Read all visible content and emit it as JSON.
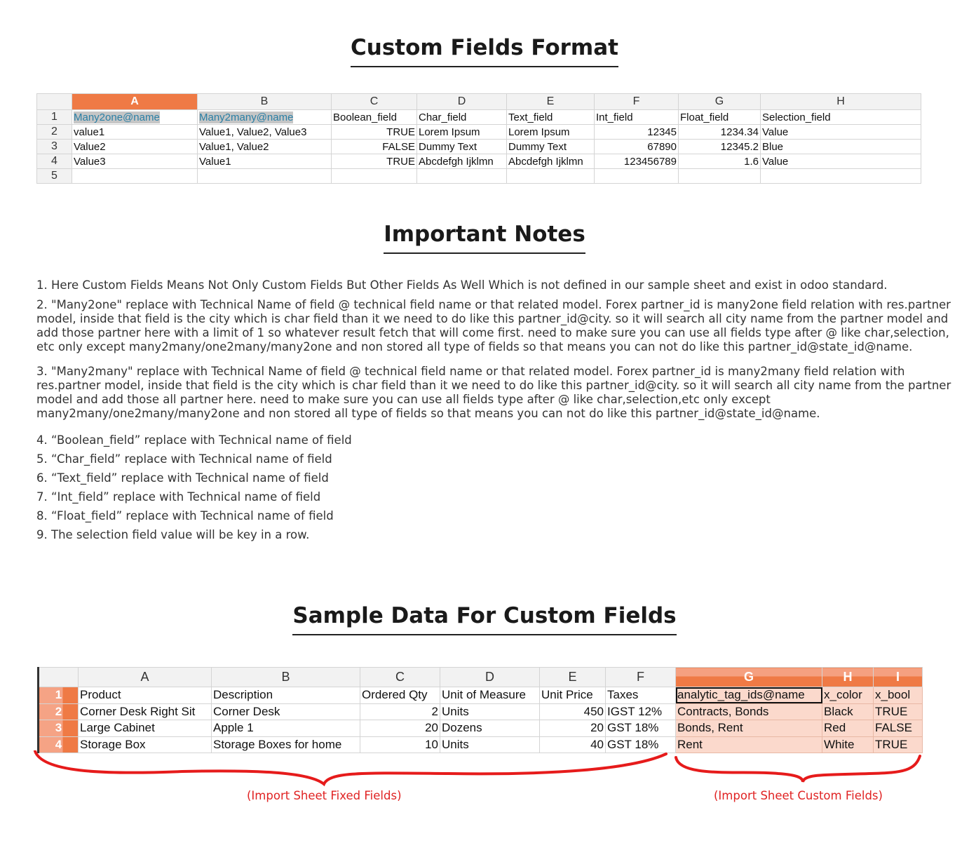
{
  "titles": {
    "format": "Custom Fields Format",
    "notes": "Important Notes",
    "sample": "Sample Data For Custom Fields"
  },
  "format_sheet": {
    "columns": [
      "A",
      "B",
      "C",
      "D",
      "E",
      "F",
      "G",
      "H"
    ],
    "rows": [
      [
        "1",
        "Many2one@name",
        "Many2many@name",
        "Boolean_field",
        "Char_field",
        "Text_field",
        "Int_field",
        "Float_field",
        "Selection_field"
      ],
      [
        "2",
        "value1",
        "Value1, Value2, Value3",
        "TRUE",
        "Lorem Ipsum",
        "Lorem Ipsum",
        "12345",
        "1234.34",
        "Value"
      ],
      [
        "3",
        "Value2",
        "Value1, Value2",
        "FALSE",
        "Dummy Text",
        "Dummy Text",
        "67890",
        "12345.2",
        "Blue"
      ],
      [
        "4",
        "Value3",
        "Value1",
        "TRUE",
        "Abcdefgh Ijklmn",
        "Abcdefgh Ijklmn",
        "123456789",
        "1.6",
        "Value"
      ],
      [
        "5",
        "",
        "",
        "",
        "",
        "",
        "",
        "",
        ""
      ]
    ]
  },
  "notes": [
    "1. Here Custom Fields Means Not Only Custom Fields But Other Fields As Well Which is not defined in our sample sheet and exist in odoo standard.",
    "2. \"Many2one\" replace with  Technical Name of field @ technical field name or that related model. Forex partner_id is many2one field relation with res.partner model, inside that field is the city which is char field than it we need to do like this partner_id@city. so it will search all city name from the partner model and add those partner here with a limit of 1 so whatever result fetch that will come first. need to make sure you can use all fields type after @ like char,selection, etc only except many2many/one2many/many2one and non stored all type of fields so that means you can not do like this partner_id@state_id@name.",
    "3. \"Many2many\" replace with  Technical Name of field @ technical field name or that related model. Forex partner_id is many2many field relation with res.partner model, inside that field is the city which is char field than it we need to do like this partner_id@city. so it will search all city name from the partner model and add those all partner here. need to make sure you can use all fields type after @ like char,selection,etc only except many2many/one2many/many2one and non stored all type of fields so that means you can not do like this partner_id@state_id@name.",
    "4. “Boolean_field”  replace with Technical name of field",
    "5. “Char_field”  replace with Technical name of field",
    "6. “Text_field”  replace with Technical name of field",
    "7. “Int_field”  replace with Technical name of field",
    "8. “Float_field”  replace with Technical name of field",
    "9. The selection field value will be key in a row."
  ],
  "sample_sheet": {
    "columns": [
      "A",
      "B",
      "C",
      "D",
      "E",
      "F",
      "G",
      "H",
      "I"
    ],
    "rows": [
      [
        "1",
        "Product",
        "Description",
        "Ordered Qty",
        "Unit of Measure",
        "Unit Price",
        "Taxes",
        "analytic_tag_ids@name",
        "x_color",
        "x_bool"
      ],
      [
        "2",
        "Corner Desk Right Sit",
        "Corner Desk",
        "2",
        "Units",
        "450",
        "IGST 12%",
        "Contracts, Bonds",
        "Black",
        "TRUE"
      ],
      [
        "3",
        "Large Cabinet",
        "Apple 1",
        "20",
        "Dozens",
        "20",
        "GST 18%",
        "Bonds, Rent",
        "Red",
        "FALSE"
      ],
      [
        "4",
        "Storage Box",
        "Storage Boxes for home",
        "10",
        "Units",
        "40",
        "GST 18%",
        "Rent",
        "White",
        "TRUE"
      ]
    ]
  },
  "annotations": {
    "fixed": "(Import Sheet Fixed Fields)",
    "custom": "(Import Sheet Custom Fields)"
  },
  "colors": {
    "accent": "#ef7a45",
    "custom_fill": "#fbd9cc",
    "annotation": "#e02323"
  }
}
